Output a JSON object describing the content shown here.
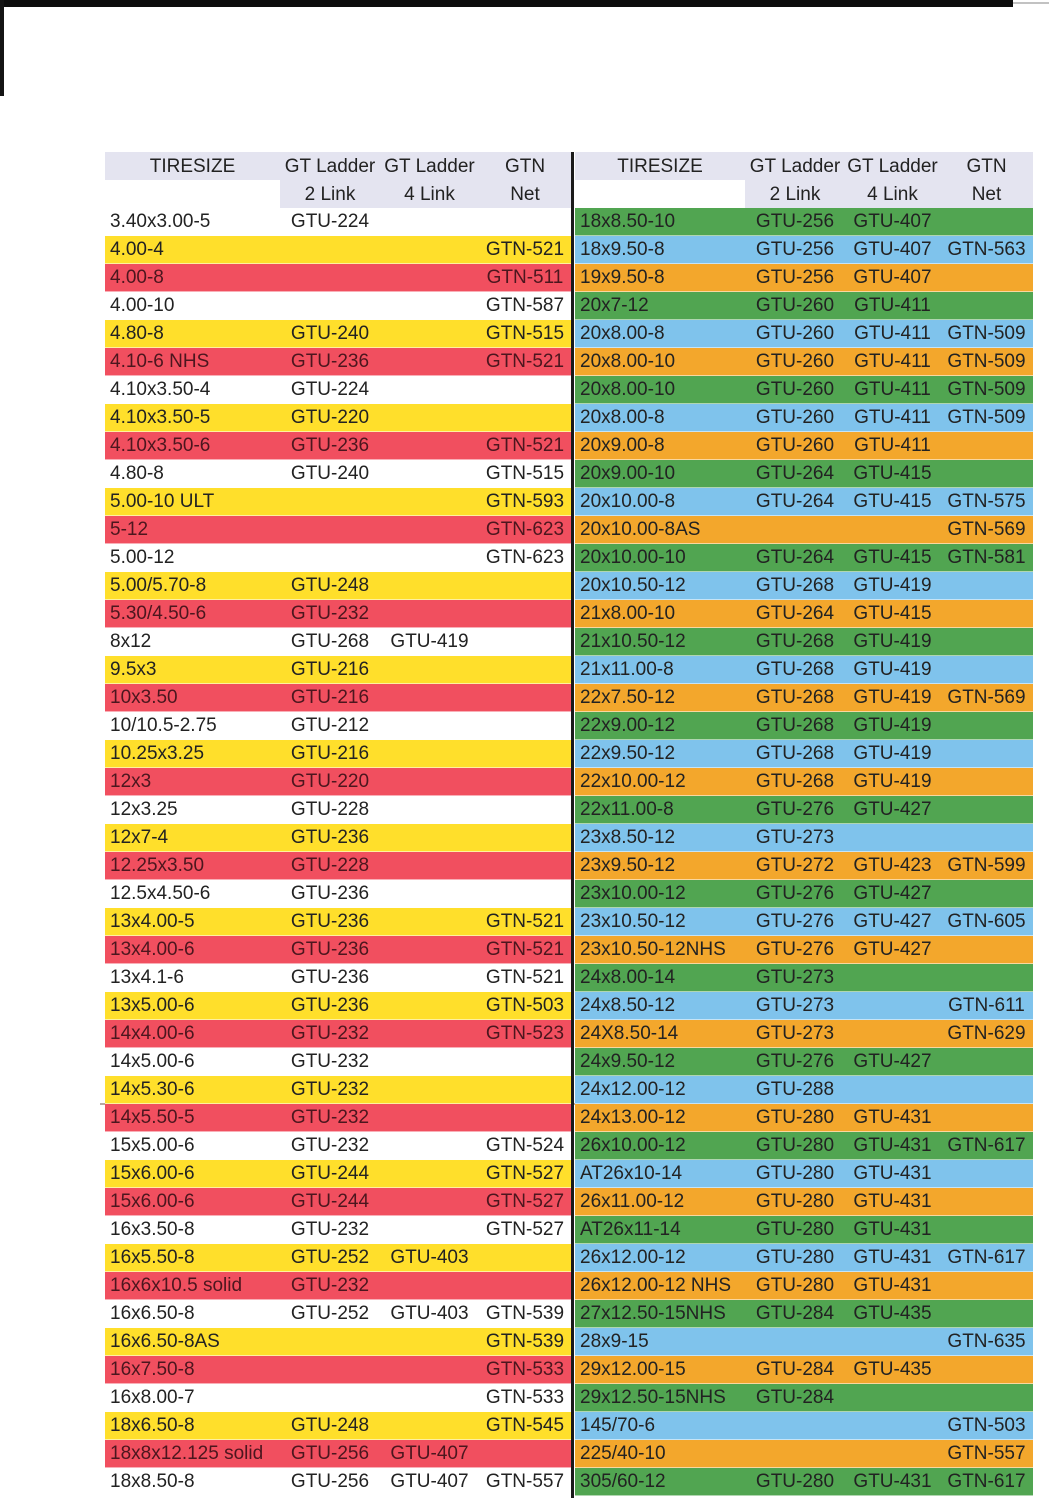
{
  "header": {
    "tiresize": "TIRESIZE",
    "ladder": "GT Ladder",
    "link2": "2 Link",
    "link4": "4 Link",
    "gtn": "GTN",
    "net": "Net"
  },
  "colors": {
    "w": "#FFFFFF",
    "y": "#FFDF2B",
    "r": "#F14F5F",
    "g": "#51A551",
    "b": "#7FC3EC",
    "o": "#F3A72C",
    "header_bg": "#E4E4F0"
  },
  "table_columns": [
    "t",
    "l2",
    "l4",
    "n"
  ],
  "table_column_names": [
    "tiresize-cell",
    "gt-ladder-2link-cell",
    "gt-ladder-4link-cell",
    "gtn-net-cell"
  ],
  "left_rows": [
    {
      "t": "3.40x3.00-5",
      "l2": "GTU-224",
      "l4": "",
      "n": "",
      "c": "w"
    },
    {
      "t": "4.00-4",
      "l2": "",
      "l4": "",
      "n": "GTN-521",
      "c": "y"
    },
    {
      "t": "4.00-8",
      "l2": "",
      "l4": "",
      "n": "GTN-511",
      "c": "r"
    },
    {
      "t": "4.00-10",
      "l2": "",
      "l4": "",
      "n": "GTN-587",
      "c": "w"
    },
    {
      "t": "4.80-8",
      "l2": "GTU-240",
      "l4": "",
      "n": "GTN-515",
      "c": "y"
    },
    {
      "t": "4.10-6 NHS",
      "l2": "GTU-236",
      "l4": "",
      "n": "GTN-521",
      "c": "r"
    },
    {
      "t": "4.10x3.50-4",
      "l2": "GTU-224",
      "l4": "",
      "n": "",
      "c": "w"
    },
    {
      "t": "4.10x3.50-5",
      "l2": "GTU-220",
      "l4": "",
      "n": "",
      "c": "y"
    },
    {
      "t": "4.10x3.50-6",
      "l2": "GTU-236",
      "l4": "",
      "n": "GTN-521",
      "c": "r"
    },
    {
      "t": "4.80-8",
      "l2": "GTU-240",
      "l4": "",
      "n": "GTN-515",
      "c": "w"
    },
    {
      "t": "5.00-10 ULT",
      "l2": "",
      "l4": "",
      "n": "GTN-593",
      "c": "y"
    },
    {
      "t": "5-12",
      "l2": "",
      "l4": "",
      "n": "GTN-623",
      "c": "r"
    },
    {
      "t": "5.00-12",
      "l2": "",
      "l4": "",
      "n": "GTN-623",
      "c": "w"
    },
    {
      "t": "5.00/5.70-8",
      "l2": "GTU-248",
      "l4": "",
      "n": "",
      "c": "y"
    },
    {
      "t": "5.30/4.50-6",
      "l2": "GTU-232",
      "l4": "",
      "n": "",
      "c": "r"
    },
    {
      "t": "8x12",
      "l2": "GTU-268",
      "l4": "GTU-419",
      "n": "",
      "c": "w"
    },
    {
      "t": "9.5x3",
      "l2": "GTU-216",
      "l4": "",
      "n": "",
      "c": "y"
    },
    {
      "t": "10x3.50",
      "l2": "GTU-216",
      "l4": "",
      "n": "",
      "c": "r"
    },
    {
      "t": "10/10.5-2.75",
      "l2": "GTU-212",
      "l4": "",
      "n": "",
      "c": "w"
    },
    {
      "t": "10.25x3.25",
      "l2": "GTU-216",
      "l4": "",
      "n": "",
      "c": "y"
    },
    {
      "t": "12x3",
      "l2": "GTU-220",
      "l4": "",
      "n": "",
      "c": "r"
    },
    {
      "t": "12x3.25",
      "l2": "GTU-228",
      "l4": "",
      "n": "",
      "c": "w"
    },
    {
      "t": "12x7-4",
      "l2": "GTU-236",
      "l4": "",
      "n": "",
      "c": "y"
    },
    {
      "t": "12.25x3.50",
      "l2": "GTU-228",
      "l4": "",
      "n": "",
      "c": "r"
    },
    {
      "t": "12.5x4.50-6",
      "l2": "GTU-236",
      "l4": "",
      "n": "",
      "c": "w"
    },
    {
      "t": "13x4.00-5",
      "l2": "GTU-236",
      "l4": "",
      "n": "GTN-521",
      "c": "y"
    },
    {
      "t": "13x4.00-6",
      "l2": "GTU-236",
      "l4": "",
      "n": "GTN-521",
      "c": "r"
    },
    {
      "t": "13x4.1-6",
      "l2": "GTU-236",
      "l4": "",
      "n": "GTN-521",
      "c": "w"
    },
    {
      "t": "13x5.00-6",
      "l2": "GTU-236",
      "l4": "",
      "n": "GTN-503",
      "c": "y"
    },
    {
      "t": "14x4.00-6",
      "l2": "GTU-232",
      "l4": "",
      "n": "GTN-523",
      "c": "r"
    },
    {
      "t": "14x5.00-6",
      "l2": "GTU-232",
      "l4": "",
      "n": "",
      "c": "w"
    },
    {
      "t": "14x5.30-6",
      "l2": "GTU-232",
      "l4": "",
      "n": "",
      "c": "y"
    },
    {
      "t": "14x5.50-5",
      "l2": "GTU-232",
      "l4": "",
      "n": "",
      "c": "r"
    },
    {
      "t": "15x5.00-6",
      "l2": "GTU-232",
      "l4": "",
      "n": "GTN-524",
      "c": "w"
    },
    {
      "t": "15x6.00-6",
      "l2": "GTU-244",
      "l4": "",
      "n": "GTN-527",
      "c": "y"
    },
    {
      "t": "15x6.00-6",
      "l2": "GTU-244",
      "l4": "",
      "n": "GTN-527",
      "c": "r"
    },
    {
      "t": "16x3.50-8",
      "l2": "GTU-232",
      "l4": "",
      "n": "GTN-527",
      "c": "w"
    },
    {
      "t": "16x5.50-8",
      "l2": "GTU-252",
      "l4": "GTU-403",
      "n": "",
      "c": "y"
    },
    {
      "t": "16x6x10.5 solid",
      "l2": "GTU-232",
      "l4": "",
      "n": "",
      "c": "r"
    },
    {
      "t": "16x6.50-8",
      "l2": "GTU-252",
      "l4": "GTU-403",
      "n": "GTN-539",
      "c": "w"
    },
    {
      "t": "16x6.50-8AS",
      "l2": "",
      "l4": "",
      "n": "GTN-539",
      "c": "y"
    },
    {
      "t": "16x7.50-8",
      "l2": "",
      "l4": "",
      "n": "GTN-533",
      "c": "r"
    },
    {
      "t": "16x8.00-7",
      "l2": "",
      "l4": "",
      "n": "GTN-533",
      "c": "w"
    },
    {
      "t": "18x6.50-8",
      "l2": "GTU-248",
      "l4": "",
      "n": "GTN-545",
      "c": "y"
    },
    {
      "t": "18x8x12.125 solid",
      "l2": "GTU-256",
      "l4": "GTU-407",
      "n": "",
      "c": "r"
    },
    {
      "t": "18x8.50-8",
      "l2": "GTU-256",
      "l4": "GTU-407",
      "n": "GTN-557",
      "c": "w"
    }
  ],
  "right_rows": [
    {
      "t": "18x8.50-10",
      "l2": "GTU-256",
      "l4": "GTU-407",
      "n": "",
      "c": "g"
    },
    {
      "t": "18x9.50-8",
      "l2": "GTU-256",
      "l4": "GTU-407",
      "n": "GTN-563",
      "c": "b"
    },
    {
      "t": "19x9.50-8",
      "l2": "GTU-256",
      "l4": "GTU-407",
      "n": "",
      "c": "o"
    },
    {
      "t": "20x7-12",
      "l2": "GTU-260",
      "l4": "GTU-411",
      "n": "",
      "c": "g"
    },
    {
      "t": "20x8.00-8",
      "l2": "GTU-260",
      "l4": "GTU-411",
      "n": "GTN-509",
      "c": "b"
    },
    {
      "t": "20x8.00-10",
      "l2": "GTU-260",
      "l4": "GTU-411",
      "n": "GTN-509",
      "c": "o"
    },
    {
      "t": "20x8.00-10",
      "l2": "GTU-260",
      "l4": "GTU-411",
      "n": "GTN-509",
      "c": "g"
    },
    {
      "t": "20x8.00-8",
      "l2": "GTU-260",
      "l4": "GTU-411",
      "n": "GTN-509",
      "c": "b"
    },
    {
      "t": "20x9.00-8",
      "l2": "GTU-260",
      "l4": "GTU-411",
      "n": "",
      "c": "o"
    },
    {
      "t": "20x9.00-10",
      "l2": "GTU-264",
      "l4": "GTU-415",
      "n": "",
      "c": "g"
    },
    {
      "t": "20x10.00-8",
      "l2": "GTU-264",
      "l4": "GTU-415",
      "n": "GTN-575",
      "c": "b"
    },
    {
      "t": "20x10.00-8AS",
      "l2": "",
      "l4": "",
      "n": "GTN-569",
      "c": "o"
    },
    {
      "t": "20x10.00-10",
      "l2": "GTU-264",
      "l4": "GTU-415",
      "n": "GTN-581",
      "c": "g"
    },
    {
      "t": "20x10.50-12",
      "l2": "GTU-268",
      "l4": "GTU-419",
      "n": "",
      "c": "b"
    },
    {
      "t": "21x8.00-10",
      "l2": "GTU-264",
      "l4": "GTU-415",
      "n": "",
      "c": "o"
    },
    {
      "t": "21x10.50-12",
      "l2": "GTU-268",
      "l4": "GTU-419",
      "n": "",
      "c": "g"
    },
    {
      "t": "21x11.00-8",
      "l2": "GTU-268",
      "l4": "GTU-419",
      "n": "",
      "c": "b"
    },
    {
      "t": "22x7.50-12",
      "l2": "GTU-268",
      "l4": "GTU-419",
      "n": "GTN-569",
      "c": "o"
    },
    {
      "t": "22x9.00-12",
      "l2": "GTU-268",
      "l4": "GTU-419",
      "n": "",
      "c": "g"
    },
    {
      "t": "22x9.50-12",
      "l2": "GTU-268",
      "l4": "GTU-419",
      "n": "",
      "c": "b"
    },
    {
      "t": "22x10.00-12",
      "l2": "GTU-268",
      "l4": "GTU-419",
      "n": "",
      "c": "o"
    },
    {
      "t": "22x11.00-8",
      "l2": "GTU-276",
      "l4": "GTU-427",
      "n": "",
      "c": "g"
    },
    {
      "t": "23x8.50-12",
      "l2": "GTU-273",
      "l4": "",
      "n": "",
      "c": "b"
    },
    {
      "t": "23x9.50-12",
      "l2": "GTU-272",
      "l4": "GTU-423",
      "n": "GTN-599",
      "c": "o"
    },
    {
      "t": "23x10.00-12",
      "l2": "GTU-276",
      "l4": "GTU-427",
      "n": "",
      "c": "g"
    },
    {
      "t": "23x10.50-12",
      "l2": "GTU-276",
      "l4": "GTU-427",
      "n": "GTN-605",
      "c": "b"
    },
    {
      "t": "23x10.50-12NHS",
      "l2": "GTU-276",
      "l4": "GTU-427",
      "n": "",
      "c": "o"
    },
    {
      "t": "24x8.00-14",
      "l2": "GTU-273",
      "l4": "",
      "n": "",
      "c": "g"
    },
    {
      "t": "24x8.50-12",
      "l2": "GTU-273",
      "l4": "",
      "n": "GTN-611",
      "c": "b"
    },
    {
      "t": "24X8.50-14",
      "l2": "GTU-273",
      "l4": "",
      "n": "GTN-629",
      "c": "o"
    },
    {
      "t": "24x9.50-12",
      "l2": "GTU-276",
      "l4": "GTU-427",
      "n": "",
      "c": "g"
    },
    {
      "t": "24x12.00-12",
      "l2": "GTU-288",
      "l4": "",
      "n": "",
      "c": "b"
    },
    {
      "t": "24x13.00-12",
      "l2": "GTU-280",
      "l4": "GTU-431",
      "n": "",
      "c": "o"
    },
    {
      "t": "26x10.00-12",
      "l2": "GTU-280",
      "l4": "GTU-431",
      "n": "GTN-617",
      "c": "g"
    },
    {
      "t": "AT26x10-14",
      "l2": "GTU-280",
      "l4": "GTU-431",
      "n": "",
      "c": "b"
    },
    {
      "t": "26x11.00-12",
      "l2": "GTU-280",
      "l4": "GTU-431",
      "n": "",
      "c": "o"
    },
    {
      "t": "AT26x11-14",
      "l2": "GTU-280",
      "l4": "GTU-431",
      "n": "",
      "c": "g"
    },
    {
      "t": "26x12.00-12",
      "l2": "GTU-280",
      "l4": "GTU-431",
      "n": "GTN-617",
      "c": "b"
    },
    {
      "t": "26x12.00-12 NHS",
      "l2": "GTU-280",
      "l4": "GTU-431",
      "n": "",
      "c": "o"
    },
    {
      "t": "27x12.50-15NHS",
      "l2": "GTU-284",
      "l4": "GTU-435",
      "n": "",
      "c": "g"
    },
    {
      "t": "28x9-15",
      "l2": "",
      "l4": "",
      "n": "GTN-635",
      "c": "b"
    },
    {
      "t": "29x12.00-15",
      "l2": "GTU-284",
      "l4": "GTU-435",
      "n": "",
      "c": "o"
    },
    {
      "t": "29x12.50-15NHS",
      "l2": "GTU-284",
      "l4": "",
      "n": "",
      "c": "g"
    },
    {
      "t": "145/70-6",
      "l2": "",
      "l4": "",
      "n": "GTN-503",
      "c": "b"
    },
    {
      "t": "225/40-10",
      "l2": "",
      "l4": "",
      "n": "GTN-557",
      "c": "o"
    },
    {
      "t": "305/60-12",
      "l2": "GTU-280",
      "l4": "GTU-431",
      "n": "GTN-617",
      "c": "g"
    }
  ]
}
